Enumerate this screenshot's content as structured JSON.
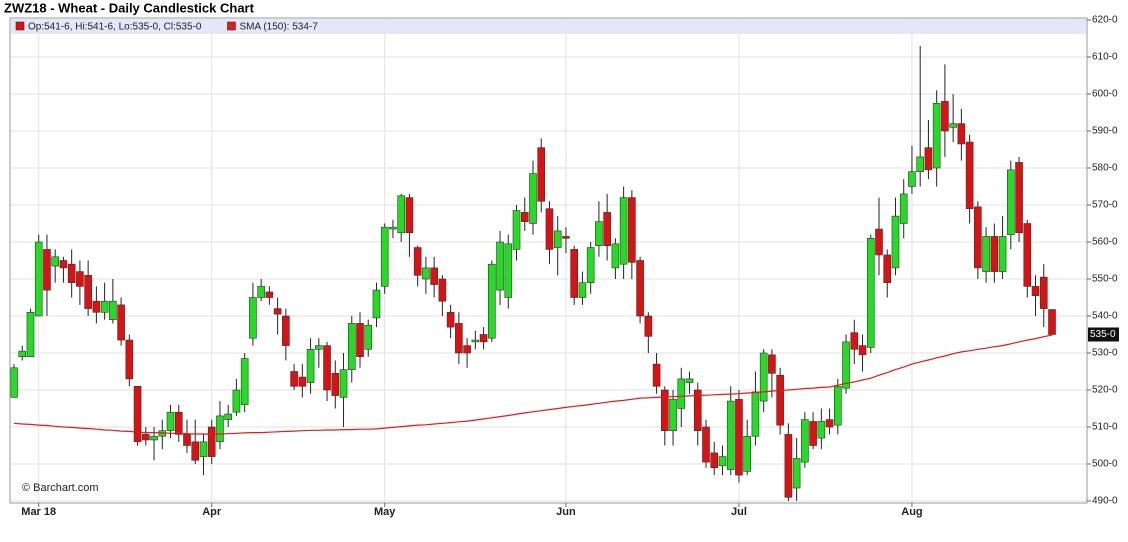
{
  "chart_data": {
    "type": "candlestick",
    "title": "ZWZ18 - Wheat - Daily Candlestick Chart",
    "source": "© Barchart.com",
    "categories": [
      null,
      null,
      null,
      "Mar 18",
      null,
      null,
      null,
      null,
      null,
      null,
      null,
      null,
      null,
      null,
      null,
      null,
      null,
      null,
      null,
      null,
      null,
      null,
      null,
      null,
      "Apr",
      null,
      null,
      null,
      null,
      null,
      null,
      null,
      null,
      null,
      null,
      null,
      null,
      null,
      null,
      null,
      null,
      null,
      null,
      null,
      null,
      "May",
      null,
      null,
      null,
      null,
      null,
      null,
      null,
      null,
      null,
      null,
      null,
      null,
      null,
      null,
      null,
      null,
      null,
      null,
      null,
      null,
      null,
      "Jun",
      null,
      null,
      null,
      null,
      null,
      null,
      null,
      null,
      null,
      null,
      null,
      null,
      null,
      null,
      null,
      null,
      null,
      null,
      null,
      null,
      "Jul",
      null,
      null,
      null,
      null,
      null,
      null,
      null,
      null,
      null,
      null,
      null,
      null,
      null,
      null,
      null,
      null,
      null,
      null,
      null,
      null,
      "Aug",
      null,
      null,
      null,
      null,
      null,
      null,
      null,
      null,
      null,
      null,
      null,
      null,
      null,
      null,
      null,
      null,
      null
    ],
    "series": [
      {
        "name": "Op:541-6, Hi:541-6, Lo:535-0, Cl:535-0",
        "type": "candlestick",
        "up_color": "#22dd22",
        "down_color": "#dd1111",
        "open": [
          518,
          529,
          529,
          540,
          558,
          553.5,
          555,
          554,
          552,
          551,
          544,
          541,
          539,
          543,
          533.5,
          521,
          508,
          506.5,
          507.5,
          509,
          514,
          508,
          506,
          502,
          510,
          506,
          512,
          514,
          516,
          534,
          545,
          546.5,
          542,
          540,
          525,
          523.5,
          522,
          531,
          532,
          524.5,
          518,
          525.5,
          538,
          531,
          539.5,
          548,
          563.5,
          562.5,
          572,
          558.5,
          550,
          553,
          550,
          541,
          538,
          532,
          533,
          535,
          534,
          547,
          545,
          558,
          568,
          565,
          585.5,
          569,
          558.5,
          561.5,
          558,
          545,
          549,
          559,
          568,
          553,
          554,
          572,
          555,
          540,
          527,
          520,
          509,
          515,
          522,
          520,
          510,
          503,
          499.5,
          498.5,
          517.5,
          498,
          507.5,
          517,
          529.5,
          524,
          508,
          493.5,
          500.5,
          511.5,
          507,
          512,
          510.5,
          520.5,
          535.5,
          532,
          531.5,
          563.5,
          556.5,
          553,
          565,
          575,
          579,
          585.5,
          580,
          598,
          591,
          592,
          587,
          569.5,
          552,
          561.5,
          552,
          562,
          581.5,
          565,
          548,
          550.5,
          541.75
        ],
        "high": [
          527,
          532,
          542,
          562,
          562,
          558,
          556,
          558,
          555,
          555,
          548,
          549,
          550,
          545,
          535,
          521,
          510,
          510,
          512,
          516,
          516,
          512,
          512,
          508,
          512,
          517,
          516,
          523,
          530,
          549,
          550,
          548,
          545,
          542,
          527,
          527,
          534,
          534,
          533,
          528,
          530,
          540,
          541,
          539,
          549,
          565,
          566,
          573,
          573,
          559,
          556,
          556,
          551,
          543,
          541,
          534,
          536,
          537,
          555,
          563,
          562,
          570,
          572,
          582,
          588,
          571,
          567,
          564,
          559,
          552,
          560,
          571,
          573,
          561,
          575,
          574,
          556,
          541,
          530,
          521,
          520,
          526,
          525,
          522,
          512,
          506,
          505,
          521,
          520,
          512,
          525,
          531,
          531,
          526,
          511,
          507,
          514,
          514,
          515,
          515,
          523,
          535,
          539,
          535,
          562,
          572,
          558,
          572,
          577,
          586,
          613,
          593,
          601,
          608,
          600,
          596,
          589,
          571,
          564,
          565,
          567,
          582,
          583,
          566,
          551,
          554,
          541.75
        ],
        "low": [
          518,
          528,
          529,
          540,
          540,
          549,
          549,
          545,
          543,
          540,
          538,
          539,
          538,
          532,
          521,
          505,
          505,
          501,
          504,
          507,
          506,
          503,
          500,
          497,
          500,
          504,
          510,
          513,
          514,
          532,
          544,
          543,
          535,
          528,
          520,
          518,
          519,
          526,
          517,
          515,
          510,
          522,
          526,
          529,
          537,
          546,
          561,
          560,
          556,
          548,
          546,
          545,
          540,
          534,
          527,
          526,
          531,
          531,
          533,
          543,
          542,
          555,
          563,
          562,
          568,
          554,
          551,
          557,
          543,
          543,
          546,
          556,
          555,
          550,
          550,
          550,
          538,
          530,
          519,
          505,
          505,
          510,
          519,
          505,
          499,
          497,
          497,
          497,
          495,
          497,
          505,
          514,
          518,
          508,
          490,
          490,
          499,
          504,
          504,
          508,
          508,
          519,
          527,
          525,
          530,
          551,
          545,
          551,
          561,
          573,
          575,
          577,
          575,
          583,
          587,
          582,
          565,
          550,
          549,
          549,
          550,
          558,
          560,
          545,
          540,
          537,
          535
        ],
        "close": [
          526,
          530.5,
          541,
          560,
          547,
          556,
          553,
          549,
          548,
          542,
          541,
          544,
          544,
          533.5,
          523,
          506,
          506.5,
          507.5,
          509,
          514,
          508,
          505,
          501,
          506,
          502,
          513,
          513.5,
          520,
          528.5,
          545,
          548,
          545,
          540.5,
          532,
          521,
          521,
          531,
          532,
          520,
          518.5,
          525.5,
          538,
          529,
          537.5,
          547,
          564,
          564,
          572.5,
          562.5,
          551,
          553,
          548.5,
          544,
          537,
          530,
          530,
          533.5,
          533,
          554,
          560,
          559.5,
          568.5,
          565.5,
          578.5,
          571,
          558,
          563,
          561,
          545,
          549,
          558.5,
          565.5,
          559,
          559.5,
          572,
          554.5,
          540,
          534.5,
          521,
          509,
          517.5,
          523,
          523,
          509,
          500.5,
          499,
          502,
          517,
          497,
          507.5,
          519.5,
          530,
          524.5,
          510.5,
          491,
          501.5,
          512,
          505,
          511.5,
          510,
          521,
          533,
          531,
          529.5,
          561,
          556.5,
          549,
          567,
          573,
          579,
          583,
          579.5,
          597.5,
          590,
          592,
          586.5,
          569,
          553,
          561.5,
          552,
          561.5,
          579.5,
          562.5,
          548,
          545.5,
          542,
          535
        ]
      },
      {
        "name": "SMA (150): 534-7",
        "type": "line",
        "color": "#e31b1b",
        "values": [
          511,
          510.8,
          510.7,
          510.5,
          510.4,
          510.2,
          510,
          509.9,
          509.7,
          509.6,
          509.4,
          509.2,
          509.1,
          508.9,
          508.8,
          508.6,
          508.5,
          508.5,
          508.4,
          508.3,
          508.3,
          508.2,
          508.1,
          508.1,
          508,
          508.1,
          508.2,
          508.3,
          508.4,
          508.5,
          508.5,
          508.6,
          508.7,
          508.8,
          508.9,
          509,
          509.1,
          509.1,
          509.2,
          509.2,
          509.3,
          509.3,
          509.4,
          509.4,
          509.5,
          509.7,
          509.9,
          510.1,
          510.3,
          510.5,
          510.6,
          510.8,
          511,
          511.2,
          511.4,
          511.6,
          511.9,
          512.2,
          512.5,
          512.8,
          513.1,
          513.5,
          513.8,
          514.1,
          514.4,
          514.7,
          515,
          515.3,
          515.6,
          515.8,
          516.1,
          516.4,
          516.7,
          517,
          517.2,
          517.5,
          517.8,
          517.9,
          518,
          518.1,
          518.2,
          518.3,
          518.4,
          518.5,
          518.6,
          518.7,
          518.8,
          518.9,
          519,
          519.2,
          519.3,
          519.5,
          519.7,
          519.9,
          520,
          520.2,
          520.4,
          520.5,
          520.7,
          520.8,
          521.3,
          521.8,
          522.2,
          522.7,
          523.2,
          524,
          524.7,
          525.5,
          526.2,
          527,
          527.6,
          528.1,
          528.7,
          529.2,
          529.8,
          530.3,
          530.6,
          531,
          531.3,
          531.7,
          532,
          532.5,
          533,
          533.5,
          533.9,
          534.4,
          534.875
        ]
      }
    ],
    "last_price": {
      "value": 535,
      "label": "535-0"
    },
    "ylim": [
      490,
      620
    ],
    "yticks": [
      {
        "value": 490,
        "label": "490-0"
      },
      {
        "value": 500,
        "label": "500-0"
      },
      {
        "value": 510,
        "label": "510-0"
      },
      {
        "value": 520,
        "label": "520-0"
      },
      {
        "value": 530,
        "label": "530-0"
      },
      {
        "value": 540,
        "label": "540-0"
      },
      {
        "value": 550,
        "label": "550-0"
      },
      {
        "value": 560,
        "label": "560-0"
      },
      {
        "value": 570,
        "label": "570-0"
      },
      {
        "value": 580,
        "label": "580-0"
      },
      {
        "value": 590,
        "label": "590-0"
      },
      {
        "value": 600,
        "label": "600-0"
      },
      {
        "value": 610,
        "label": "610-0"
      },
      {
        "value": 620,
        "label": "620-0"
      }
    ],
    "grid": true
  }
}
